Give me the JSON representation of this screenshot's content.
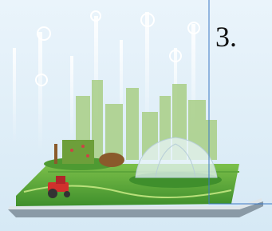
{
  "label": "3."
}
